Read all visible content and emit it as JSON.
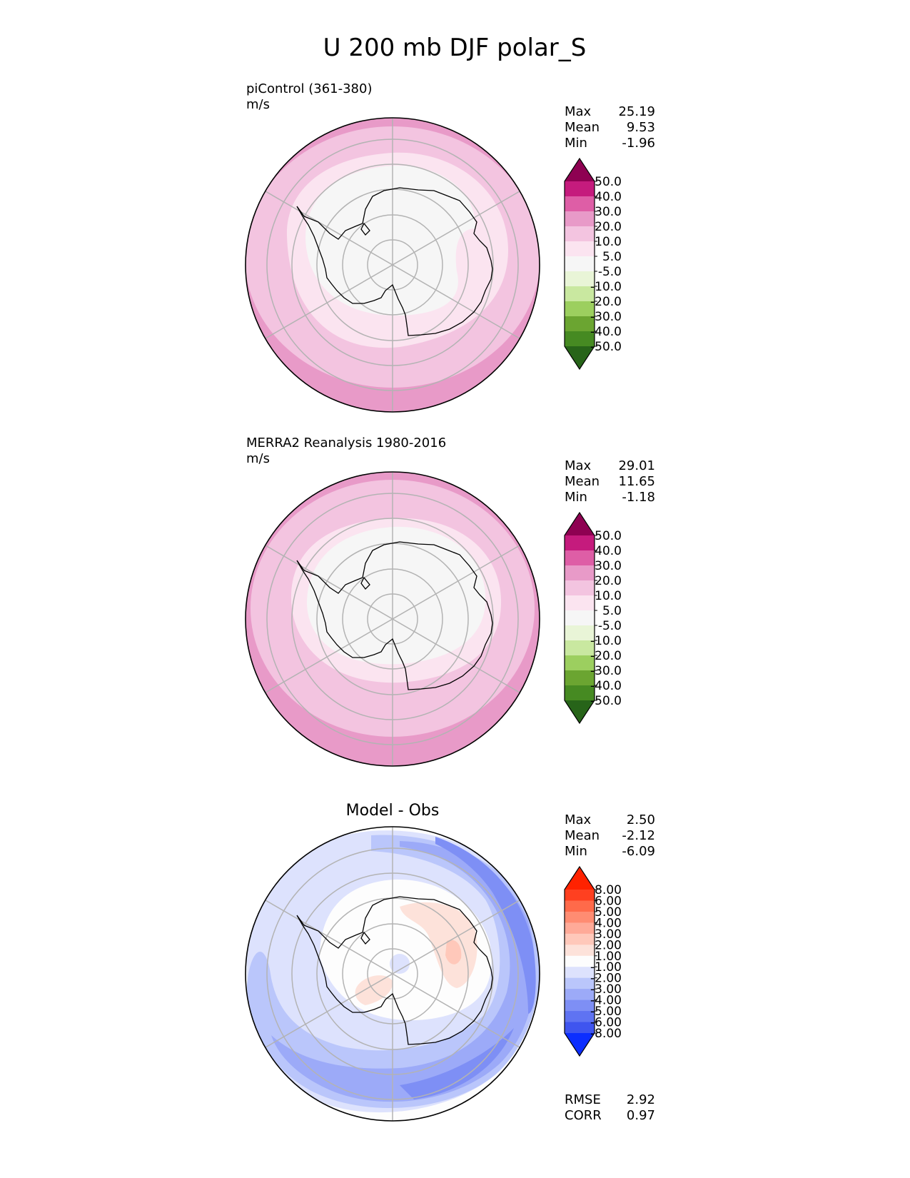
{
  "title": "U 200 mb DJF polar_S",
  "chart_data": [
    {
      "type": "polar_contour_map",
      "projection": "south polar stereographic",
      "subtitle": "piControl (361-380)",
      "units": "m/s",
      "stats": [
        {
          "label": "Max",
          "value": "25.19"
        },
        {
          "label": "Mean",
          "value": "9.53"
        },
        {
          "label": "Min",
          "value": "-1.96"
        }
      ],
      "colorbar": {
        "levels": [
          "50.0",
          "40.0",
          "30.0",
          "20.0",
          "10.0",
          "5.0",
          "-5.0",
          "-10.0",
          "-20.0",
          "-30.0",
          "-40.0",
          "-50.0"
        ],
        "colors": [
          "#8e0152",
          "#c51b7d",
          "#de5ea6",
          "#e89ac8",
          "#f3c4e0",
          "#fbe4f0",
          "#f6f6f6",
          "#e9f5d7",
          "#c9e8a0",
          "#9ccf5f",
          "#6ba531",
          "#468a22",
          "#276419"
        ]
      },
      "bands_from_pole": [
        {
          "range": "-5.0 to 5.0",
          "color": "#f6f6f6"
        },
        {
          "range": "5.0 to 10.0",
          "color": "#fbe4f0"
        },
        {
          "range": "10.0 to 20.0",
          "color": "#f3c4e0"
        },
        {
          "range": "20.0 to 30.0",
          "color": "#e89ac8"
        }
      ]
    },
    {
      "type": "polar_contour_map",
      "projection": "south polar stereographic",
      "subtitle": "MERRA2 Reanalysis 1980-2016",
      "units": "m/s",
      "stats": [
        {
          "label": "Max",
          "value": "29.01"
        },
        {
          "label": "Mean",
          "value": "11.65"
        },
        {
          "label": "Min",
          "value": "-1.18"
        }
      ],
      "colorbar": {
        "levels": [
          "50.0",
          "40.0",
          "30.0",
          "20.0",
          "10.0",
          "5.0",
          "-5.0",
          "-10.0",
          "-20.0",
          "-30.0",
          "-40.0",
          "-50.0"
        ],
        "colors": [
          "#8e0152",
          "#c51b7d",
          "#de5ea6",
          "#e89ac8",
          "#f3c4e0",
          "#fbe4f0",
          "#f6f6f6",
          "#e9f5d7",
          "#c9e8a0",
          "#9ccf5f",
          "#6ba531",
          "#468a22",
          "#276419"
        ]
      },
      "bands_from_pole": [
        {
          "range": "-5.0 to 5.0",
          "color": "#f6f6f6"
        },
        {
          "range": "5.0 to 10.0",
          "color": "#fbe4f0"
        },
        {
          "range": "10.0 to 20.0",
          "color": "#f3c4e0"
        },
        {
          "range": "20.0 to 30.0",
          "color": "#e89ac8"
        }
      ]
    },
    {
      "type": "polar_contour_map",
      "projection": "south polar stereographic",
      "subtitle": "Model - Obs",
      "units": "",
      "stats": [
        {
          "label": "Max",
          "value": "2.50"
        },
        {
          "label": "Mean",
          "value": "-2.12"
        },
        {
          "label": "Min",
          "value": "-6.09"
        }
      ],
      "extra_stats": [
        {
          "label": "RMSE",
          "value": "2.92"
        },
        {
          "label": "CORR",
          "value": "0.97"
        }
      ],
      "colorbar": {
        "levels": [
          "8.00",
          "6.00",
          "5.00",
          "4.00",
          "3.00",
          "2.00",
          "1.00",
          "-1.00",
          "-2.00",
          "-3.00",
          "-4.00",
          "-5.00",
          "-6.00",
          "-8.00"
        ],
        "colors": [
          "#ff2200",
          "#ff4020",
          "#ff6a4a",
          "#ff8c72",
          "#ffaa98",
          "#ffc8ba",
          "#fde2da",
          "#fdfdfd",
          "#dde2fd",
          "#bac6fb",
          "#9caaf8",
          "#7e8ff5",
          "#5f73f2",
          "#3f55ef",
          "#0c2eff"
        ]
      },
      "bands_from_pole": [
        {
          "range": "-1.00 to 1.00",
          "color": "#fdfdfd"
        },
        {
          "range": "-2.00 to -1.00",
          "color": "#dde2fd"
        },
        {
          "range": "-3.00 to -2.00",
          "color": "#bac6fb"
        },
        {
          "range": "-4.00 to -3.00",
          "color": "#9caaf8"
        },
        {
          "range": "-5.00 to -4.00",
          "color": "#7e8ff5"
        }
      ]
    }
  ]
}
